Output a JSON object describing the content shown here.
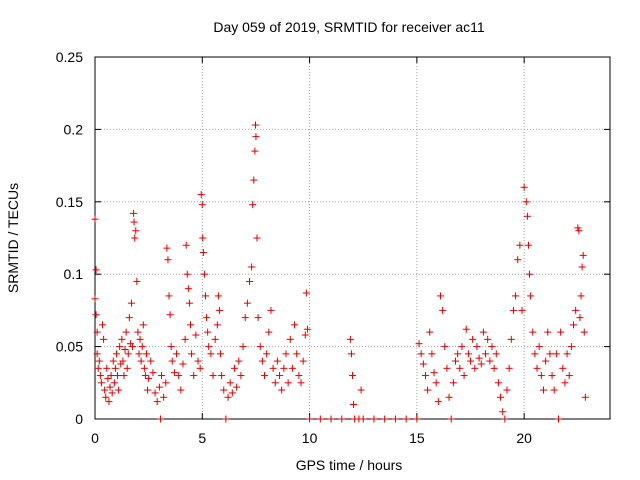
{
  "chart_data": {
    "type": "scatter",
    "title": "Day 059 of 2019, SRMTID for receiver ac11",
    "xlabel": "GPS time / hours",
    "ylabel": "SRMTID / TECUs",
    "xlim": [
      0,
      24
    ],
    "ylim": [
      0,
      0.25
    ],
    "xticks": [
      0,
      5,
      10,
      15,
      20
    ],
    "xtick_labels": [
      "0",
      "5",
      "10",
      "15",
      "20"
    ],
    "yticks": [
      0,
      0.05,
      0.1,
      0.15,
      0.2,
      0.25
    ],
    "ytick_labels": [
      "0",
      "0.05",
      "0.1",
      "0.15",
      "0.2",
      "0.25"
    ],
    "grid": true,
    "marker": "+",
    "color": "#e00000",
    "series": [
      {
        "name": "SRMTID",
        "points": [
          [
            0.0,
            0.138
          ],
          [
            0.0,
            0.083
          ],
          [
            0.05,
            0.103
          ],
          [
            0.05,
            0.072
          ],
          [
            0.1,
            0.06
          ],
          [
            0.1,
            0.045
          ],
          [
            0.15,
            0.035
          ],
          [
            0.2,
            0.04
          ],
          [
            0.25,
            0.03
          ],
          [
            0.3,
            0.025
          ],
          [
            0.35,
            0.065
          ],
          [
            0.4,
            0.055
          ],
          [
            0.45,
            0.02
          ],
          [
            0.5,
            0.015
          ],
          [
            0.55,
            0.035
          ],
          [
            0.6,
            0.028
          ],
          [
            0.65,
            0.012
          ],
          [
            0.7,
            0.022
          ],
          [
            0.75,
            0.03
          ],
          [
            0.8,
            0.018
          ],
          [
            0.85,
            0.04
          ],
          [
            0.9,
            0.025
          ],
          [
            0.95,
            0.035
          ],
          [
            1.0,
            0.045
          ],
          [
            1.05,
            0.03
          ],
          [
            1.1,
            0.02
          ],
          [
            1.15,
            0.05
          ],
          [
            1.2,
            0.038
          ],
          [
            1.25,
            0.055
          ],
          [
            1.3,
            0.04
          ],
          [
            1.35,
            0.03
          ],
          [
            1.4,
            0.048
          ],
          [
            1.45,
            0.06
          ],
          [
            1.5,
            0.035
          ],
          [
            1.55,
            0.045
          ],
          [
            1.6,
            0.07
          ],
          [
            1.65,
            0.052
          ],
          [
            1.7,
            0.08
          ],
          [
            1.75,
            0.05
          ],
          [
            1.8,
            0.142
          ],
          [
            1.82,
            0.136
          ],
          [
            1.85,
            0.125
          ],
          [
            1.9,
            0.13
          ],
          [
            1.95,
            0.095
          ],
          [
            2.0,
            0.06
          ],
          [
            2.05,
            0.045
          ],
          [
            2.1,
            0.055
          ],
          [
            2.15,
            0.04
          ],
          [
            2.2,
            0.05
          ],
          [
            2.25,
            0.065
          ],
          [
            2.3,
            0.035
          ],
          [
            2.35,
            0.03
          ],
          [
            2.4,
            0.045
          ],
          [
            2.45,
            0.02
          ],
          [
            2.5,
            0.028
          ],
          [
            2.6,
            0.04
          ],
          [
            2.7,
            0.032
          ],
          [
            2.8,
            0.018
          ],
          [
            2.9,
            0.012
          ],
          [
            3.0,
            0.022
          ],
          [
            3.05,
            0.0
          ],
          [
            3.1,
            0.03
          ],
          [
            3.2,
            0.015
          ],
          [
            3.3,
            0.025
          ],
          [
            3.35,
            0.118
          ],
          [
            3.4,
            0.11
          ],
          [
            3.45,
            0.085
          ],
          [
            3.5,
            0.072
          ],
          [
            3.55,
            0.05
          ],
          [
            3.6,
            0.04
          ],
          [
            3.7,
            0.032
          ],
          [
            3.8,
            0.045
          ],
          [
            3.9,
            0.03
          ],
          [
            4.0,
            0.02
          ],
          [
            4.1,
            0.038
          ],
          [
            4.2,
            0.055
          ],
          [
            4.25,
            0.12
          ],
          [
            4.3,
            0.1
          ],
          [
            4.35,
            0.09
          ],
          [
            4.4,
            0.08
          ],
          [
            4.45,
            0.065
          ],
          [
            4.5,
            0.045
          ],
          [
            4.6,
            0.03
          ],
          [
            4.7,
            0.058
          ],
          [
            4.8,
            0.04
          ],
          [
            4.9,
            0.035
          ],
          [
            4.95,
            0.155
          ],
          [
            5.0,
            0.148
          ],
          [
            5.02,
            0.125
          ],
          [
            5.05,
            0.115
          ],
          [
            5.1,
            0.1
          ],
          [
            5.15,
            0.085
          ],
          [
            5.2,
            0.07
          ],
          [
            5.25,
            0.06
          ],
          [
            5.3,
            0.05
          ],
          [
            5.4,
            0.045
          ],
          [
            5.5,
            0.03
          ],
          [
            5.6,
            0.055
          ],
          [
            5.7,
            0.065
          ],
          [
            5.75,
            0.085
          ],
          [
            5.8,
            0.075
          ],
          [
            5.85,
            0.045
          ],
          [
            5.9,
            0.03
          ],
          [
            6.0,
            0.02
          ],
          [
            6.1,
            0.0
          ],
          [
            6.2,
            0.015
          ],
          [
            6.3,
            0.025
          ],
          [
            6.4,
            0.018
          ],
          [
            6.5,
            0.035
          ],
          [
            6.6,
            0.022
          ],
          [
            6.7,
            0.04
          ],
          [
            6.8,
            0.03
          ],
          [
            6.9,
            0.05
          ],
          [
            7.0,
            0.07
          ],
          [
            7.1,
            0.08
          ],
          [
            7.2,
            0.095
          ],
          [
            7.3,
            0.105
          ],
          [
            7.35,
            0.148
          ],
          [
            7.4,
            0.165
          ],
          [
            7.45,
            0.185
          ],
          [
            7.48,
            0.203
          ],
          [
            7.5,
            0.195
          ],
          [
            7.55,
            0.125
          ],
          [
            7.6,
            0.07
          ],
          [
            7.7,
            0.05
          ],
          [
            7.8,
            0.04
          ],
          [
            7.9,
            0.03
          ],
          [
            8.0,
            0.045
          ],
          [
            8.1,
            0.06
          ],
          [
            8.2,
            0.075
          ],
          [
            8.3,
            0.035
          ],
          [
            8.4,
            0.025
          ],
          [
            8.5,
            0.04
          ],
          [
            8.6,
            0.03
          ],
          [
            8.7,
            0.02
          ],
          [
            8.8,
            0.035
          ],
          [
            8.9,
            0.045
          ],
          [
            9.0,
            0.025
          ],
          [
            9.1,
            0.055
          ],
          [
            9.2,
            0.035
          ],
          [
            9.3,
            0.065
          ],
          [
            9.4,
            0.045
          ],
          [
            9.5,
            0.03
          ],
          [
            9.6,
            0.025
          ],
          [
            9.7,
            0.04
          ],
          [
            9.8,
            0.058
          ],
          [
            9.85,
            0.087
          ],
          [
            9.9,
            0.062
          ],
          [
            10.0,
            0.0
          ],
          [
            10.5,
            0.0
          ],
          [
            11.0,
            0.0
          ],
          [
            11.5,
            0.0
          ],
          [
            11.9,
            0.055
          ],
          [
            11.95,
            0.045
          ],
          [
            12.0,
            0.03
          ],
          [
            12.05,
            0.01
          ],
          [
            12.1,
            0.0
          ],
          [
            12.3,
            0.0
          ],
          [
            12.4,
            0.02
          ],
          [
            12.5,
            0.0
          ],
          [
            13.0,
            0.0
          ],
          [
            13.5,
            0.0
          ],
          [
            14.0,
            0.0
          ],
          [
            14.5,
            0.0
          ],
          [
            15.0,
            0.0
          ],
          [
            15.1,
            0.052
          ],
          [
            15.2,
            0.045
          ],
          [
            15.3,
            0.038
          ],
          [
            15.4,
            0.03
          ],
          [
            15.5,
            0.02
          ],
          [
            15.6,
            0.06
          ],
          [
            15.7,
            0.045
          ],
          [
            15.8,
            0.032
          ],
          [
            15.9,
            0.025
          ],
          [
            16.0,
            0.012
          ],
          [
            16.1,
            0.085
          ],
          [
            16.2,
            0.075
          ],
          [
            16.3,
            0.05
          ],
          [
            16.4,
            0.035
          ],
          [
            16.5,
            0.015
          ],
          [
            16.6,
            0.0
          ],
          [
            16.7,
            0.025
          ],
          [
            16.8,
            0.04
          ],
          [
            16.9,
            0.045
          ],
          [
            17.0,
            0.035
          ],
          [
            17.1,
            0.05
          ],
          [
            17.2,
            0.03
          ],
          [
            17.3,
            0.062
          ],
          [
            17.4,
            0.045
          ],
          [
            17.5,
            0.04
          ],
          [
            17.6,
            0.055
          ],
          [
            17.7,
            0.035
          ],
          [
            17.8,
            0.05
          ],
          [
            17.9,
            0.042
          ],
          [
            18.0,
            0.038
          ],
          [
            18.1,
            0.06
          ],
          [
            18.2,
            0.045
          ],
          [
            18.3,
            0.055
          ],
          [
            18.4,
            0.04
          ],
          [
            18.5,
            0.05
          ],
          [
            18.6,
            0.035
          ],
          [
            18.7,
            0.045
          ],
          [
            18.8,
            0.025
          ],
          [
            18.9,
            0.015
          ],
          [
            19.0,
            0.005
          ],
          [
            19.1,
            0.0
          ],
          [
            19.2,
            0.02
          ],
          [
            19.3,
            0.035
          ],
          [
            19.4,
            0.055
          ],
          [
            19.5,
            0.075
          ],
          [
            19.6,
            0.085
          ],
          [
            19.7,
            0.11
          ],
          [
            19.8,
            0.12
          ],
          [
            19.9,
            0.075
          ],
          [
            20.0,
            0.16
          ],
          [
            20.1,
            0.15
          ],
          [
            20.15,
            0.14
          ],
          [
            20.2,
            0.12
          ],
          [
            20.25,
            0.1
          ],
          [
            20.3,
            0.085
          ],
          [
            20.4,
            0.06
          ],
          [
            20.5,
            0.045
          ],
          [
            20.6,
            0.035
          ],
          [
            20.7,
            0.05
          ],
          [
            20.8,
            0.03
          ],
          [
            20.9,
            0.02
          ],
          [
            21.0,
            0.04
          ],
          [
            21.1,
            0.06
          ],
          [
            21.2,
            0.045
          ],
          [
            21.3,
            0.03
          ],
          [
            21.4,
            0.02
          ],
          [
            21.5,
            0.045
          ],
          [
            21.6,
            0.0
          ],
          [
            21.7,
            0.06
          ],
          [
            21.8,
            0.035
          ],
          [
            21.9,
            0.025
          ],
          [
            22.0,
            0.045
          ],
          [
            22.1,
            0.03
          ],
          [
            22.2,
            0.05
          ],
          [
            22.3,
            0.065
          ],
          [
            22.4,
            0.075
          ],
          [
            22.5,
            0.132
          ],
          [
            22.55,
            0.13
          ],
          [
            22.6,
            0.07
          ],
          [
            22.65,
            0.085
          ],
          [
            22.7,
            0.105
          ],
          [
            22.75,
            0.113
          ],
          [
            22.8,
            0.06
          ],
          [
            22.85,
            0.015
          ]
        ]
      }
    ]
  }
}
